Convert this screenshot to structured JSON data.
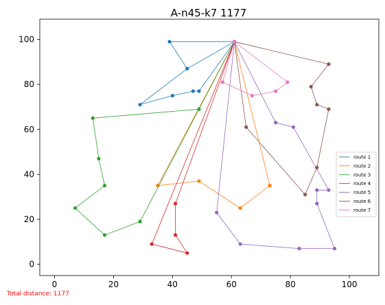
{
  "chart_data": {
    "type": "line",
    "title": "A-n45-k7 1177",
    "xlabel": "",
    "ylabel": "",
    "xlim": [
      -5,
      110
    ],
    "ylim": [
      -5,
      109
    ],
    "xticks": [
      0,
      20,
      40,
      60,
      80,
      100
    ],
    "yticks": [
      0,
      20,
      40,
      60,
      80,
      100
    ],
    "grid": false,
    "legend_position": "center-right",
    "series": [
      {
        "name": "route 1",
        "color": "#1f77b4",
        "points": [
          [
            61,
            99
          ],
          [
            45,
            87
          ],
          [
            39,
            99
          ],
          [
            61,
            99
          ],
          [
            49,
            77
          ],
          [
            47,
            77
          ],
          [
            40,
            75
          ],
          [
            29,
            71
          ],
          [
            45,
            87
          ]
        ]
      },
      {
        "name": "route 2",
        "color": "#ff7f0e",
        "points": [
          [
            61,
            99
          ],
          [
            73,
            35
          ],
          [
            63,
            25
          ],
          [
            49,
            37
          ],
          [
            35,
            35
          ],
          [
            61,
            99
          ]
        ]
      },
      {
        "name": "route 3",
        "color": "#2ca02c",
        "points": [
          [
            61,
            99
          ],
          [
            49,
            69
          ],
          [
            13,
            65
          ],
          [
            15,
            47
          ],
          [
            17,
            35
          ],
          [
            7,
            25
          ],
          [
            17,
            13
          ],
          [
            29,
            19
          ],
          [
            61,
            99
          ]
        ]
      },
      {
        "name": "route 4",
        "color": "#d62728",
        "points": [
          [
            61,
            99
          ],
          [
            41,
            27
          ],
          [
            41,
            13
          ],
          [
            45,
            5
          ],
          [
            33,
            9
          ],
          [
            61,
            99
          ]
        ]
      },
      {
        "name": "route 5",
        "color": "#9467bd",
        "points": [
          [
            61,
            99
          ],
          [
            75,
            63
          ],
          [
            81,
            61
          ],
          [
            93,
            33
          ],
          [
            89,
            33
          ],
          [
            89,
            27
          ],
          [
            95,
            7
          ],
          [
            83,
            7
          ],
          [
            63,
            9
          ],
          [
            55,
            23
          ],
          [
            61,
            99
          ]
        ]
      },
      {
        "name": "route 6",
        "color": "#8c564b",
        "points": [
          [
            61,
            99
          ],
          [
            93,
            89
          ],
          [
            87,
            79
          ],
          [
            89,
            71
          ],
          [
            93,
            69
          ],
          [
            89,
            43
          ],
          [
            85,
            31
          ],
          [
            65,
            61
          ],
          [
            61,
            99
          ]
        ]
      },
      {
        "name": "route 7",
        "color": "#e377c2",
        "points": [
          [
            61,
            99
          ],
          [
            79,
            81
          ],
          [
            75,
            77
          ],
          [
            67,
            75
          ],
          [
            57,
            81
          ],
          [
            61,
            99
          ]
        ]
      }
    ]
  },
  "footer": {
    "distance_text": "Total distance: 1177"
  }
}
